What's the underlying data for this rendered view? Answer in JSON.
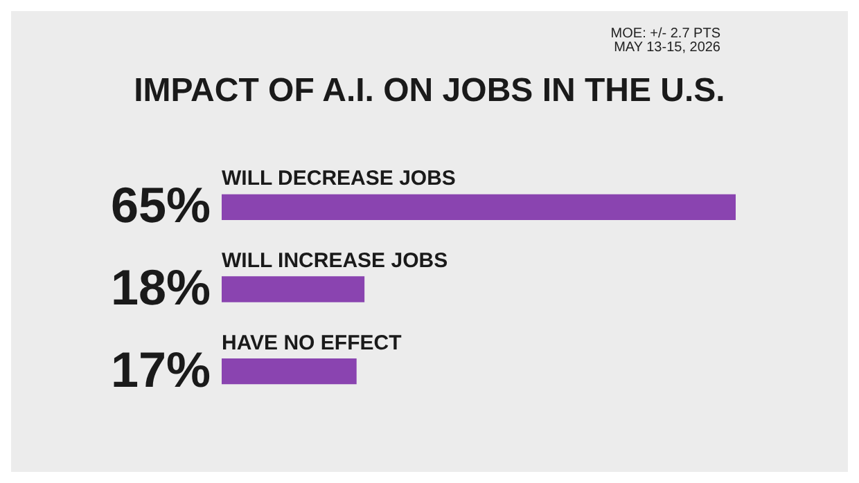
{
  "chart_data": {
    "type": "bar",
    "orientation": "horizontal",
    "title": "IMPACT OF A.I. ON JOBS IN THE U.S.",
    "annotations": [
      "MOE: +/- 2.7 PTS",
      "MAY 13-15, 2026"
    ],
    "categories": [
      "WILL DECREASE JOBS",
      "WILL INCREASE JOBS",
      "HAVE NO EFFECT"
    ],
    "values": [
      65,
      18,
      17
    ],
    "value_labels": [
      "65%",
      "18%",
      "17%"
    ],
    "color": "#8a44b0",
    "tick_labels": false
  }
}
